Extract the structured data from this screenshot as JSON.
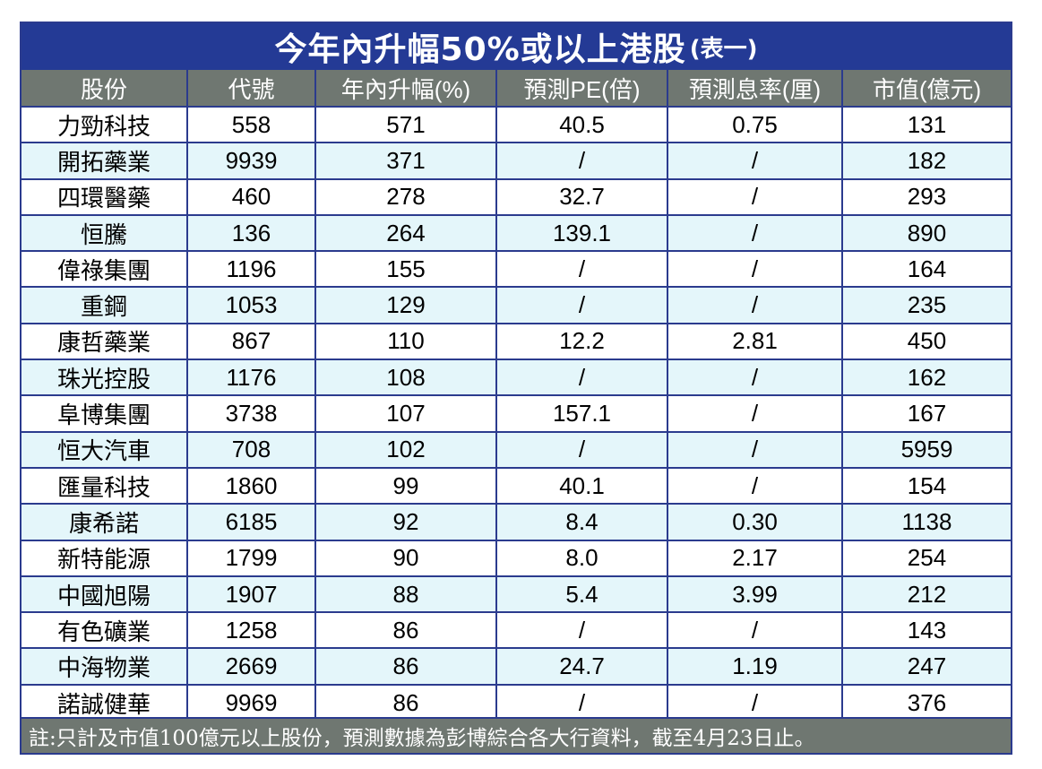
{
  "title": "今年內升幅50%或以上港股",
  "title_sub": "(表一)",
  "columns": [
    "股份",
    "代號",
    "年內升幅(%)",
    "預測PE(倍)",
    "預測息率(厘)",
    "市值(億元)"
  ],
  "rows": [
    [
      "力勁科技",
      "558",
      "571",
      "40.5",
      "0.75",
      "131"
    ],
    [
      "開拓藥業",
      "9939",
      "371",
      "/",
      "/",
      "182"
    ],
    [
      "四環醫藥",
      "460",
      "278",
      "32.7",
      "/",
      "293"
    ],
    [
      "恒騰",
      "136",
      "264",
      "139.1",
      "/",
      "890"
    ],
    [
      "偉祿集團",
      "1196",
      "155",
      "/",
      "/",
      "164"
    ],
    [
      "重鋼",
      "1053",
      "129",
      "/",
      "/",
      "235"
    ],
    [
      "康哲藥業",
      "867",
      "110",
      "12.2",
      "2.81",
      "450"
    ],
    [
      "珠光控股",
      "1176",
      "108",
      "/",
      "/",
      "162"
    ],
    [
      "阜博集團",
      "3738",
      "107",
      "157.1",
      "/",
      "167"
    ],
    [
      "恒大汽車",
      "708",
      "102",
      "/",
      "/",
      "5959"
    ],
    [
      "匯量科技",
      "1860",
      "99",
      "40.1",
      "/",
      "154"
    ],
    [
      "康希諾",
      "6185",
      "92",
      "8.4",
      "0.30",
      "1138"
    ],
    [
      "新特能源",
      "1799",
      "90",
      "8.0",
      "2.17",
      "254"
    ],
    [
      "中國旭陽",
      "1907",
      "88",
      "5.4",
      "3.99",
      "212"
    ],
    [
      "有色礦業",
      "1258",
      "86",
      "/",
      "/",
      "143"
    ],
    [
      "中海物業",
      "2669",
      "86",
      "24.7",
      "1.19",
      "247"
    ],
    [
      "諾誠健華",
      "9969",
      "86",
      "/",
      "/",
      "376"
    ]
  ],
  "footer": "註:只計及市值100億元以上股份，預測數據為彭博綜合各大行資料，截至4月23日止。",
  "colors": {
    "title_bg": "#243a95",
    "header_bg": "#6f7771",
    "stripe": "#e4f6fa",
    "border": "#2b3b8e"
  }
}
